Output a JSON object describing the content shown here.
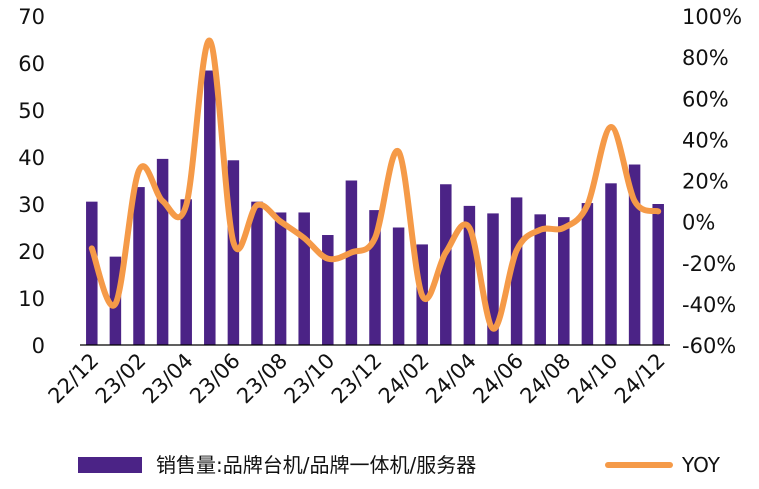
{
  "chart_data": {
    "type": "bar",
    "categories": [
      "22/12",
      "23/01",
      "23/02",
      "23/03",
      "23/04",
      "23/05",
      "23/06",
      "23/07",
      "23/08",
      "23/09",
      "23/10",
      "23/11",
      "23/12",
      "24/01",
      "24/02",
      "24/03",
      "24/04",
      "24/05",
      "24/06",
      "24/07",
      "24/08",
      "24/09",
      "24/10",
      "24/11",
      "24/12"
    ],
    "x_tick_labels": [
      "22/12",
      "23/02",
      "23/04",
      "23/06",
      "23/08",
      "23/10",
      "23/12",
      "24/02",
      "24/04",
      "24/06",
      "24/08",
      "24/10",
      "24/12"
    ],
    "series": [
      {
        "name": "销售量:品牌台机/品牌一体机/服务器",
        "type": "bar",
        "axis": "left",
        "color": "#4b2386",
        "values": [
          30.5,
          18.8,
          33.6,
          39.6,
          31.0,
          58.4,
          39.3,
          30.5,
          28.2,
          28.2,
          23.4,
          35.0,
          28.7,
          25.0,
          21.4,
          34.2,
          29.6,
          28.0,
          31.4,
          27.8,
          27.2,
          30.2,
          34.4,
          38.4,
          30.0
        ]
      },
      {
        "name": "YOY",
        "type": "line",
        "axis": "right",
        "color": "#f59a48",
        "values": [
          -13,
          -40,
          25,
          10,
          8,
          88,
          -10,
          8,
          0,
          -8,
          -18,
          -15,
          -8,
          34,
          -36,
          -15,
          -3,
          -52,
          -14,
          -4,
          -3,
          8,
          46,
          10,
          5
        ]
      }
    ],
    "y_left": {
      "min": 0,
      "max": 70,
      "ticks": [
        "0",
        "10",
        "20",
        "30",
        "40",
        "50",
        "60",
        "70"
      ]
    },
    "y_right": {
      "min": -60,
      "max": 100,
      "ticks": [
        "-60%",
        "-40%",
        "-20%",
        "0%",
        "20%",
        "40%",
        "60%",
        "80%",
        "100%"
      ]
    },
    "grid": false,
    "legend_position": "bottom"
  }
}
